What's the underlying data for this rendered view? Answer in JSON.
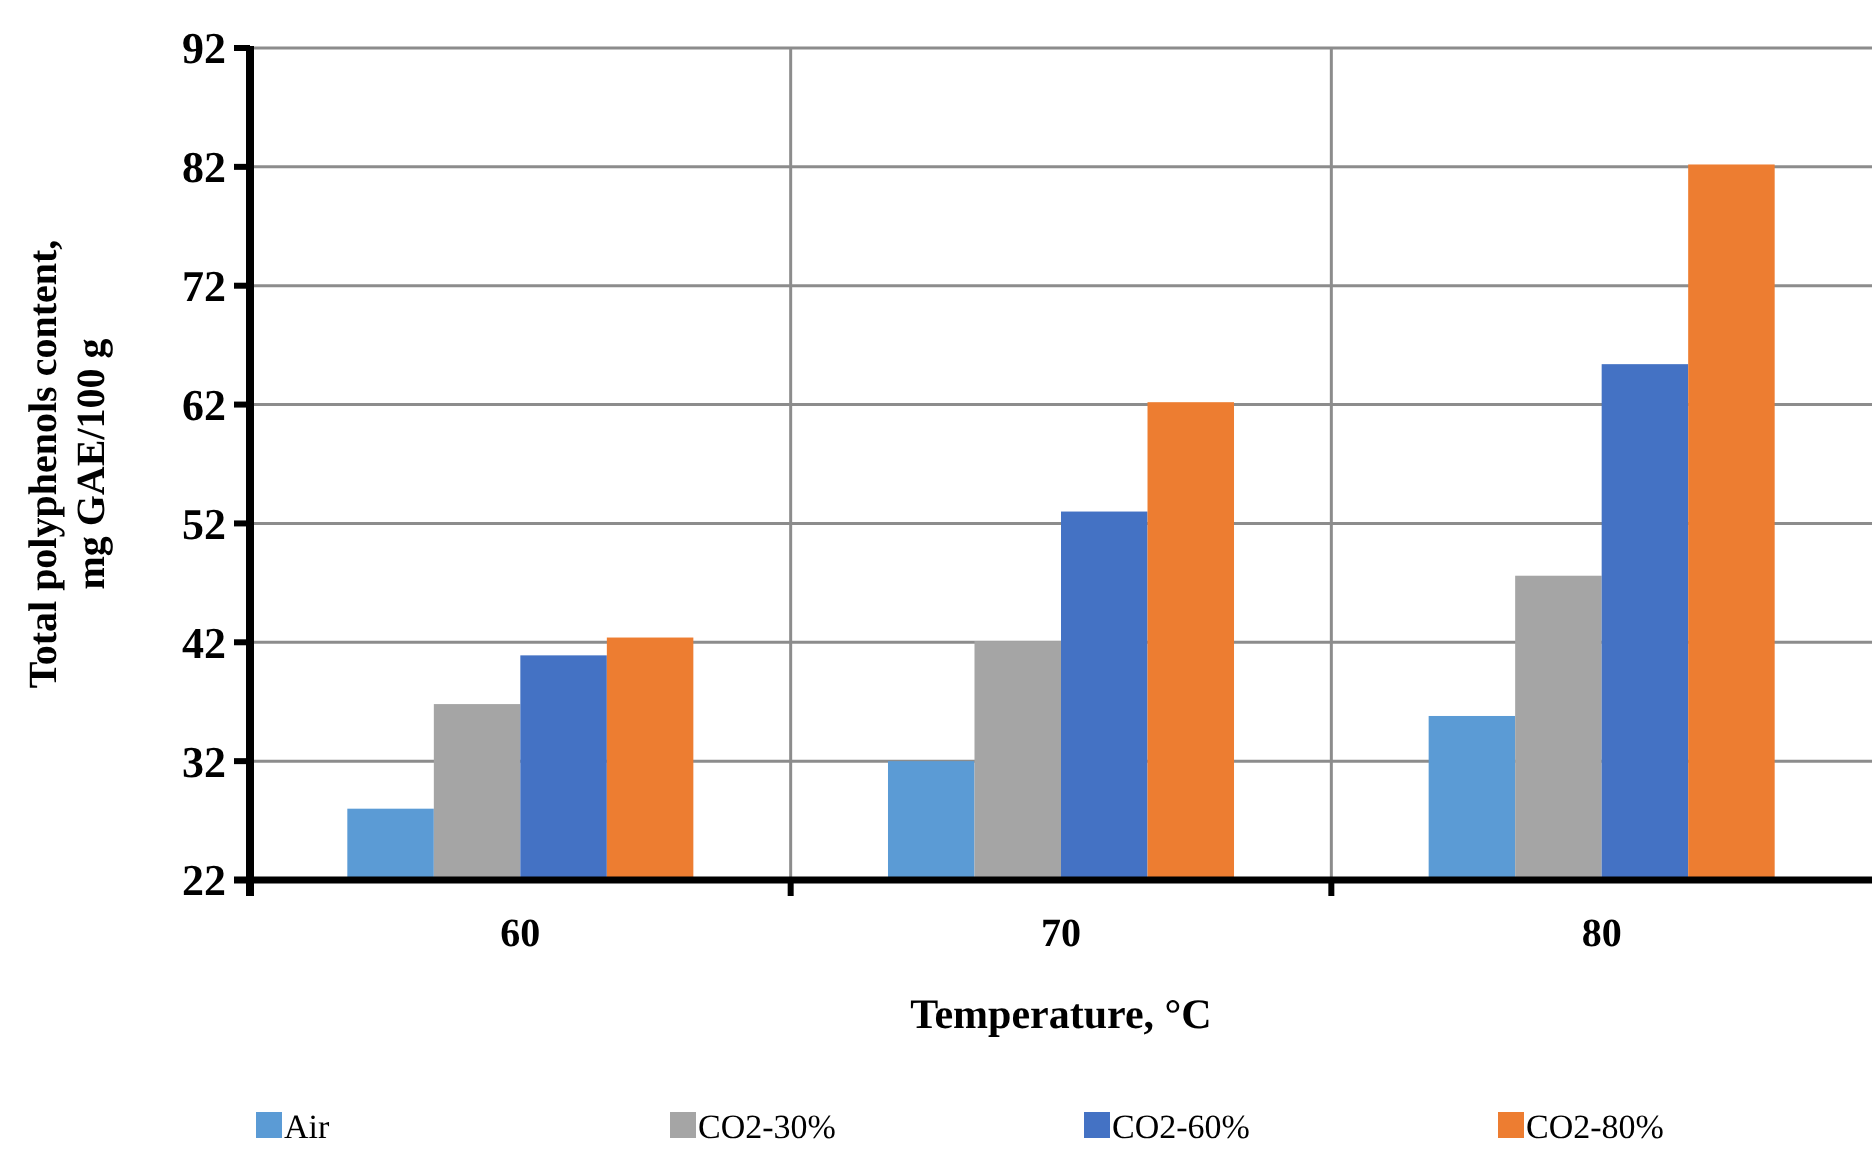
{
  "chart_data": {
    "type": "bar",
    "xlabel": "Temperature, °C",
    "ylabel": "Total polyphenols content, mg GAE/100 g",
    "categories": [
      "60",
      "70",
      "80"
    ],
    "series": [
      {
        "name": "Air",
        "color": "#5b9bd5",
        "values": [
          28.0,
          32.0,
          35.8
        ]
      },
      {
        "name": "CO2-30%",
        "color": "#a5a5a5",
        "values": [
          36.8,
          42.1,
          47.6
        ]
      },
      {
        "name": "CO2-60%",
        "color": "#4472c4",
        "values": [
          40.9,
          53.0,
          65.4
        ]
      },
      {
        "name": "CO2-80%",
        "color": "#ed7d31",
        "values": [
          42.4,
          62.2,
          82.2
        ]
      }
    ],
    "ylim": [
      22,
      92
    ],
    "yticks": [
      22,
      32,
      42,
      52,
      62,
      72,
      82,
      92
    ],
    "grid": true,
    "legend": "bottom"
  }
}
